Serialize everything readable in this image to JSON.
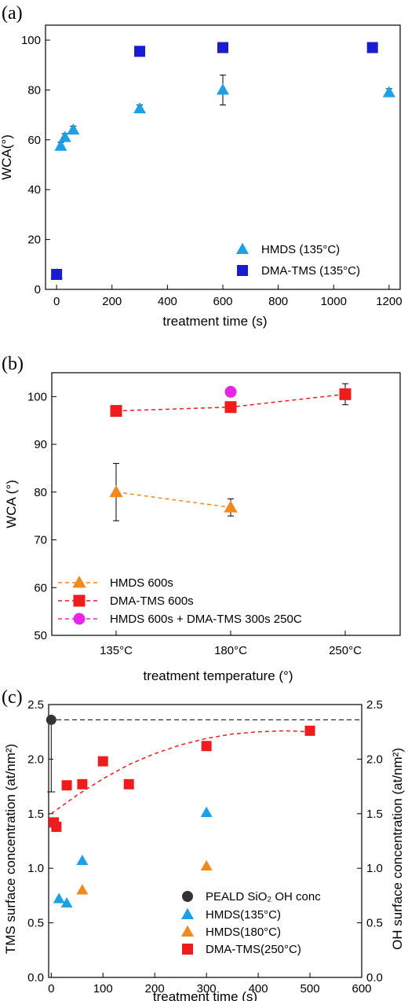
{
  "chart_data": [
    {
      "type": "scatter",
      "panel_label": "(a)",
      "xlabel": "treatment time (s)",
      "ylabel": "WCA(°)",
      "xlim": [
        -40,
        1240
      ],
      "ylim": [
        0,
        106
      ],
      "xticks": [
        0,
        200,
        400,
        600,
        800,
        1000,
        1200
      ],
      "yticks": [
        0,
        20,
        40,
        60,
        80,
        100
      ],
      "legend_position": "bottom-right",
      "series": [
        {
          "name": "HMDS (135°C)",
          "marker": "triangle",
          "color": "#1ea0e6",
          "points": [
            {
              "x": 0,
              "y": 6,
              "err": 1.5
            },
            {
              "x": 15,
              "y": 57.5,
              "err": 1.5
            },
            {
              "x": 30,
              "y": 61,
              "err": 1.5
            },
            {
              "x": 60,
              "y": 64,
              "err": 1.5
            },
            {
              "x": 300,
              "y": 72.5,
              "err": 1.5
            },
            {
              "x": 600,
              "y": 80,
              "err": 6
            },
            {
              "x": 1200,
              "y": 79,
              "err": 1.5
            }
          ]
        },
        {
          "name": "DMA-TMS (135°C)",
          "marker": "square",
          "color": "#1b1bd0",
          "points": [
            {
              "x": 0,
              "y": 6,
              "err": 1.5
            },
            {
              "x": 300,
              "y": 95.5,
              "err": 1
            },
            {
              "x": 600,
              "y": 97,
              "err": 1
            },
            {
              "x": 1140,
              "y": 97,
              "err": 1
            }
          ]
        }
      ]
    },
    {
      "type": "scatter",
      "panel_label": "(b)",
      "xlabel": "treatment temperature (°)",
      "ylabel": "WCA (°)",
      "categories": [
        "135°C",
        "180°C",
        "250°C"
      ],
      "ylim": [
        50,
        105
      ],
      "yticks": [
        50,
        60,
        70,
        80,
        90,
        100
      ],
      "legend_position": "bottom-left",
      "series": [
        {
          "name": "HMDS 600s",
          "marker": "triangle",
          "color": "#f0891e",
          "line": "dashed",
          "values": [
            80,
            76.8,
            null
          ],
          "errors": [
            6,
            1.8,
            null
          ]
        },
        {
          "name": "DMA-TMS 600s",
          "marker": "square",
          "color": "#ee1c1c",
          "line": "dashed",
          "values": [
            97,
            97.8,
            100.5
          ],
          "errors": [
            0.5,
            0.8,
            2.2
          ]
        },
        {
          "name": "HMDS 600s + DMA-TMS 300s 250C",
          "marker": "circle",
          "color": "#e626e6",
          "line": "dashed",
          "values": [
            null,
            101,
            null
          ],
          "errors": [
            null,
            0.8,
            null
          ]
        }
      ]
    },
    {
      "type": "scatter",
      "panel_label": "(c)",
      "xlabel": "treatment time (s)",
      "ylabel_left": "TMS surface concentration (at/nm²)",
      "ylabel_right": "OH surface concentration (at/nm²)",
      "xlim": [
        -5,
        600
      ],
      "ylim": [
        0,
        2.5
      ],
      "xticks": [
        0,
        100,
        200,
        300,
        400,
        500,
        600
      ],
      "yticks": [
        0.0,
        0.5,
        1.0,
        1.5,
        2.0,
        2.5
      ],
      "reference_line_y": 2.36,
      "legend_position": "bottom-right",
      "fit_curve": {
        "color": "#ee1c1c",
        "points": [
          [
            0,
            1.5
          ],
          [
            50,
            1.67
          ],
          [
            100,
            1.82
          ],
          [
            150,
            1.95
          ],
          [
            200,
            2.05
          ],
          [
            250,
            2.13
          ],
          [
            300,
            2.19
          ],
          [
            350,
            2.23
          ],
          [
            400,
            2.25
          ],
          [
            450,
            2.26
          ],
          [
            500,
            2.25
          ]
        ]
      },
      "series": [
        {
          "name": "PEALD SiO₂ OH conc",
          "marker": "circle",
          "color": "#333333",
          "points": [
            {
              "x": 0,
              "y": 2.36,
              "err_low": 0.66,
              "err_high": 0
            }
          ]
        },
        {
          "name": "HMDS(135°C)",
          "marker": "triangle",
          "color": "#1ea0e6",
          "points": [
            {
              "x": 15,
              "y": 0.72
            },
            {
              "x": 30,
              "y": 0.68
            },
            {
              "x": 60,
              "y": 1.07
            },
            {
              "x": 300,
              "y": 1.51
            }
          ]
        },
        {
          "name": "HMDS(180°C)",
          "marker": "triangle",
          "color": "#f0891e",
          "points": [
            {
              "x": 60,
              "y": 0.8
            },
            {
              "x": 300,
              "y": 1.02
            }
          ]
        },
        {
          "name": "DMA-TMS(250°C)",
          "marker": "square",
          "color": "#ee1c1c",
          "points": [
            {
              "x": 5,
              "y": 1.42
            },
            {
              "x": 10,
              "y": 1.38
            },
            {
              "x": 30,
              "y": 1.76
            },
            {
              "x": 60,
              "y": 1.77
            },
            {
              "x": 100,
              "y": 1.98
            },
            {
              "x": 150,
              "y": 1.77
            },
            {
              "x": 300,
              "y": 2.12
            },
            {
              "x": 500,
              "y": 2.26
            }
          ]
        }
      ]
    }
  ]
}
